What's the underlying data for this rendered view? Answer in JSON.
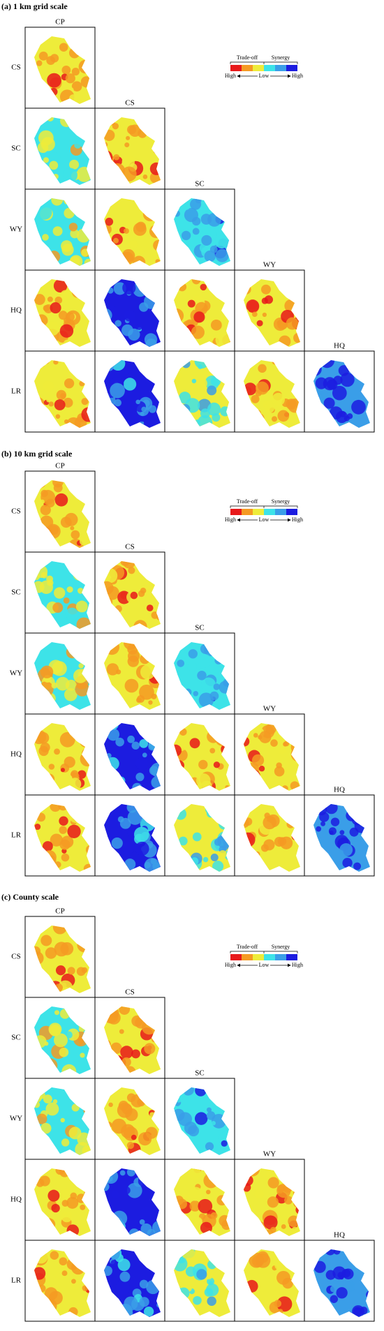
{
  "panels": [
    {
      "title": "(a) 1 km grid scale",
      "column_labels": [
        "CP",
        "CS",
        "SC",
        "WY",
        "HQ"
      ],
      "row_labels": [
        "CS",
        "SC",
        "WY",
        "HQ",
        "LR"
      ]
    },
    {
      "title": "(b) 10 km grid scale",
      "column_labels": [
        "CP",
        "CS",
        "SC",
        "WY",
        "HQ"
      ],
      "row_labels": [
        "CS",
        "SC",
        "WY",
        "HQ",
        "LR"
      ]
    },
    {
      "title": "(c) County scale",
      "column_labels": [
        "CP",
        "CS",
        "SC",
        "WY",
        "HQ"
      ],
      "row_labels": [
        "CS",
        "SC",
        "WY",
        "HQ",
        "LR"
      ]
    }
  ],
  "legend": {
    "trade_off": "Trade-off",
    "synergy": "Synergy",
    "high_left": "High",
    "low": "Low",
    "high_right": "High",
    "colors": [
      "#e8191b",
      "#f59a23",
      "#eeec3a",
      "#3de3e8",
      "#3a9ee8",
      "#1c1ce0"
    ]
  }
}
